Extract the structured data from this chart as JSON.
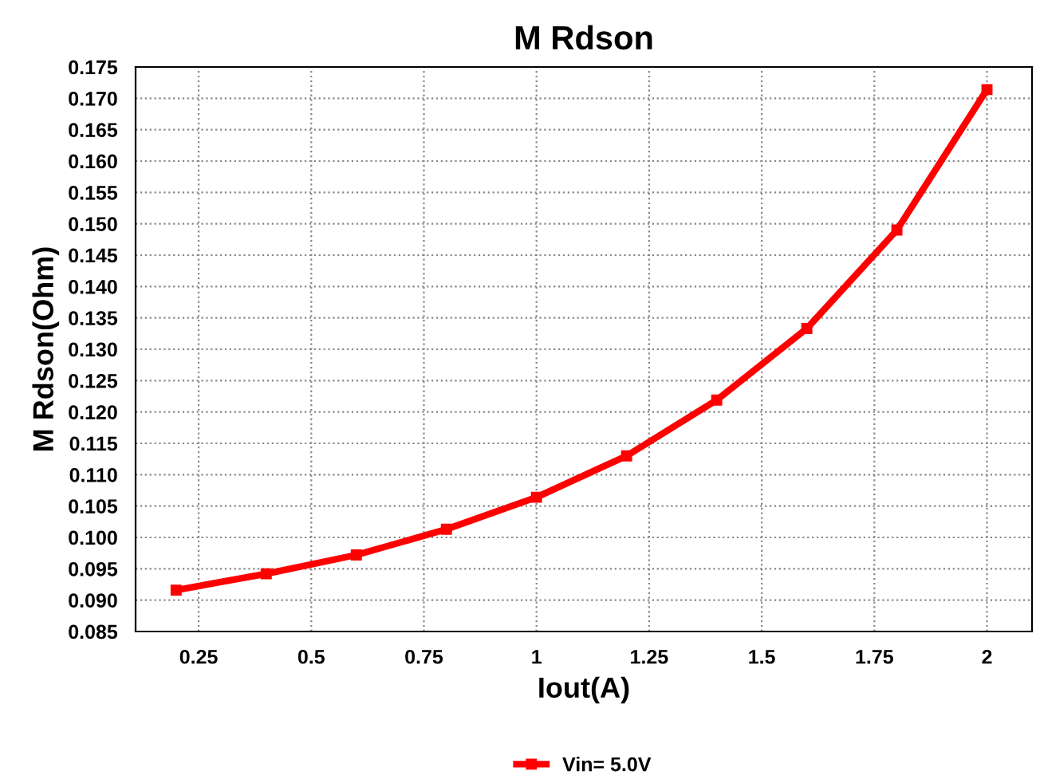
{
  "chart_data": {
    "type": "line",
    "title": "M Rdson",
    "xlabel": "Iout(A)",
    "ylabel": "M Rdson(Ohm)",
    "x": [
      0.2,
      0.4,
      0.6,
      0.8,
      1.0,
      1.2,
      1.4,
      1.6,
      1.8,
      2.0
    ],
    "series": [
      {
        "name": "Vin= 5.0V",
        "color": "#ff0000",
        "values": [
          0.0916,
          0.0942,
          0.0972,
          0.1013,
          0.1064,
          0.113,
          0.1219,
          0.1333,
          0.149,
          0.1714
        ]
      }
    ],
    "xlim": [
      0.11,
      2.1
    ],
    "xticks": [
      0.25,
      {
        "value": 0.5,
        "label": "0.5"
      },
      0.75,
      {
        "value": 1,
        "label": "1"
      },
      1.25,
      {
        "value": 1.5,
        "label": "1.5"
      },
      1.75,
      {
        "value": 2,
        "label": "2"
      }
    ],
    "ylim": [
      0.085,
      0.175
    ],
    "yticks": [
      {
        "value": 0.085,
        "label": "0.085"
      },
      {
        "value": 0.09,
        "label": "0.090"
      },
      {
        "value": 0.095,
        "label": "0.095"
      },
      {
        "value": 0.1,
        "label": "0.100"
      },
      {
        "value": 0.105,
        "label": "0.105"
      },
      {
        "value": 0.11,
        "label": "0.110"
      },
      {
        "value": 0.115,
        "label": "0.115"
      },
      {
        "value": 0.12,
        "label": "0.120"
      },
      {
        "value": 0.125,
        "label": "0.125"
      },
      {
        "value": 0.13,
        "label": "0.130"
      },
      {
        "value": 0.135,
        "label": "0.135"
      },
      {
        "value": 0.14,
        "label": "0.140"
      },
      {
        "value": 0.145,
        "label": "0.145"
      },
      {
        "value": 0.15,
        "label": "0.150"
      },
      {
        "value": 0.155,
        "label": "0.155"
      },
      {
        "value": 0.16,
        "label": "0.160"
      },
      {
        "value": 0.165,
        "label": "0.165"
      },
      {
        "value": 0.17,
        "label": "0.170"
      },
      {
        "value": 0.175,
        "label": "0.175"
      }
    ],
    "grid": true,
    "legend": "bottom",
    "marker": "square",
    "line_style": "solid"
  }
}
